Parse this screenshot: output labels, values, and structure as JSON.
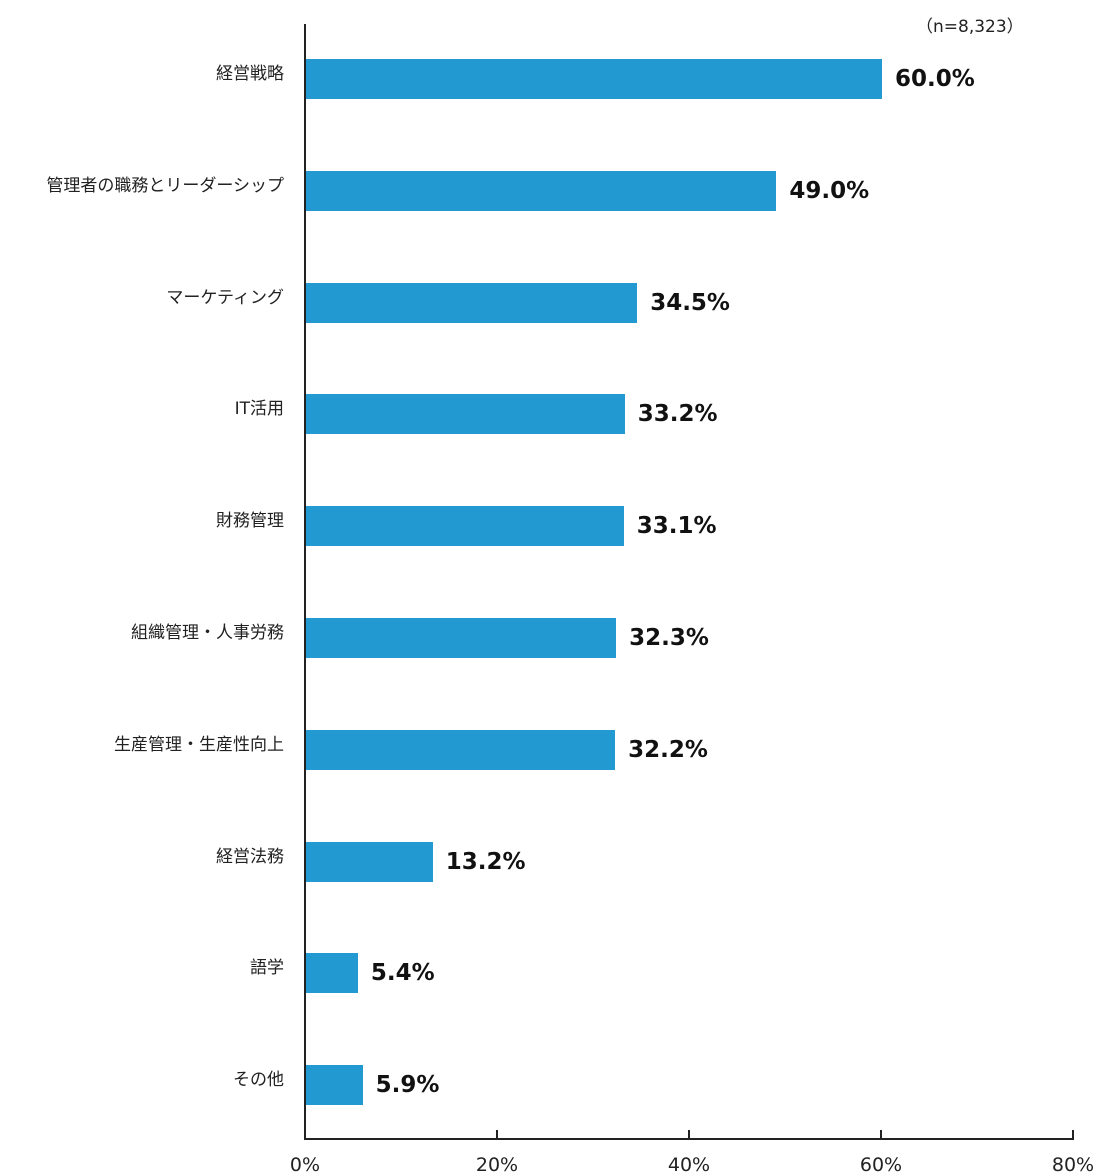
{
  "chart_data": {
    "type": "bar",
    "orientation": "horizontal",
    "title": "",
    "annotation": "（n=8,323）",
    "xlabel": "",
    "ylabel": "",
    "xlim": [
      0,
      80
    ],
    "x_ticks": [
      "0%",
      "20%",
      "40%",
      "60%",
      "80%"
    ],
    "grid": false,
    "legend": null,
    "bar_color": "#2299d0",
    "categories": [
      "経営戦略",
      "管理者の職務とリーダーシップ",
      "マーケティング",
      "IT活用",
      "財務管理",
      "組織管理・人事労務",
      "生産管理・生産性向上",
      "経営法務",
      "語学",
      "その他"
    ],
    "values": [
      60.0,
      49.0,
      34.5,
      33.2,
      33.1,
      32.3,
      32.2,
      13.2,
      5.4,
      5.9
    ],
    "value_labels": [
      "60.0%",
      "49.0%",
      "34.5%",
      "33.2%",
      "33.1%",
      "32.3%",
      "32.2%",
      "13.2%",
      "5.4%",
      "5.9%"
    ]
  }
}
